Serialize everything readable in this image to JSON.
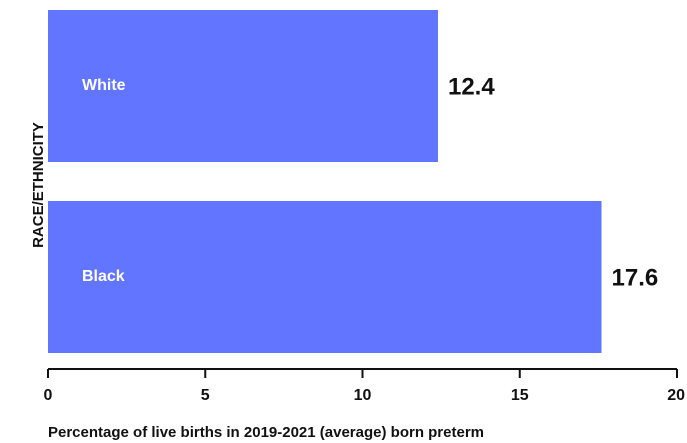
{
  "chart_data": {
    "type": "bar",
    "orientation": "horizontal",
    "categories": [
      "White",
      "Black"
    ],
    "values": [
      12.4,
      17.6
    ],
    "value_labels": [
      "12.4",
      "17.6"
    ],
    "xlabel": "Percentage of live births in 2019-2021 (average) born preterm",
    "ylabel": "RACE/ETHNICITY",
    "xlim": [
      0,
      20
    ],
    "x_ticks": [
      0,
      5,
      10,
      15,
      20
    ],
    "x_tick_labels": [
      "0",
      "5",
      "10",
      "15",
      "20"
    ],
    "grid": false,
    "legend": "none",
    "bar_color": "#6275FF",
    "bar_label_color": "#ffffff",
    "text_color": "#111111"
  }
}
